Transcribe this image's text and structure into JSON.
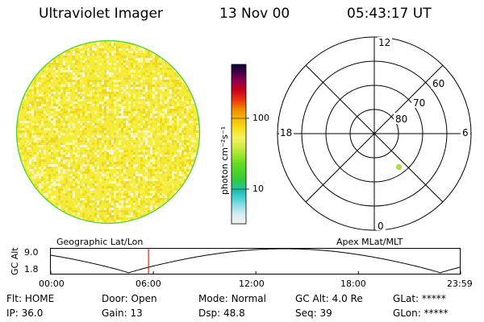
{
  "header": {
    "instrument": "Ultraviolet Imager",
    "date": "13 Nov 00",
    "time": "05:43:17 UT"
  },
  "colorbar": {
    "unit_label": "photon cm⁻²s⁻¹",
    "ticks": [
      "100",
      "10"
    ]
  },
  "polar": {
    "hour_labels": {
      "top": "12",
      "left": "18",
      "right": "6",
      "bottom": "0"
    },
    "lat_labels": [
      "60",
      "70",
      "80"
    ],
    "title": "Apex MLat/MLT"
  },
  "strip": {
    "title": "Geographic Lat/Lon",
    "ylabel": "GC Alt",
    "y_ticks": [
      "9.0",
      "1.8"
    ],
    "x_ticks": [
      "00:00",
      "06:00",
      "12:00",
      "18:00",
      "23:59"
    ],
    "marker_time": "05:43"
  },
  "info": {
    "row1": {
      "flt_label": "Flt:",
      "flt_value": "HOME",
      "door_label": "Door:",
      "door_value": "Open",
      "mode_label": "Mode:",
      "mode_value": "Normal",
      "gcalt_label": "GC Alt:",
      "gcalt_value": "4.0 Re",
      "glat_label": "GLat:",
      "glat_value": "*****"
    },
    "row2": {
      "ip_label": "IP:",
      "ip_value": "36.0",
      "gain_label": "Gain:",
      "gain_value": "13",
      "dsp_label": "Dsp:",
      "dsp_value": "48.8",
      "seq_label": "Seq:",
      "seq_value": "39",
      "glon_label": "GLon:",
      "glon_value": "*****"
    }
  },
  "colors": {
    "disk_base": "#f5ec3a",
    "disk_rim": "#5ad23c",
    "dot": "#a8e03c",
    "marker": "#c00000"
  }
}
